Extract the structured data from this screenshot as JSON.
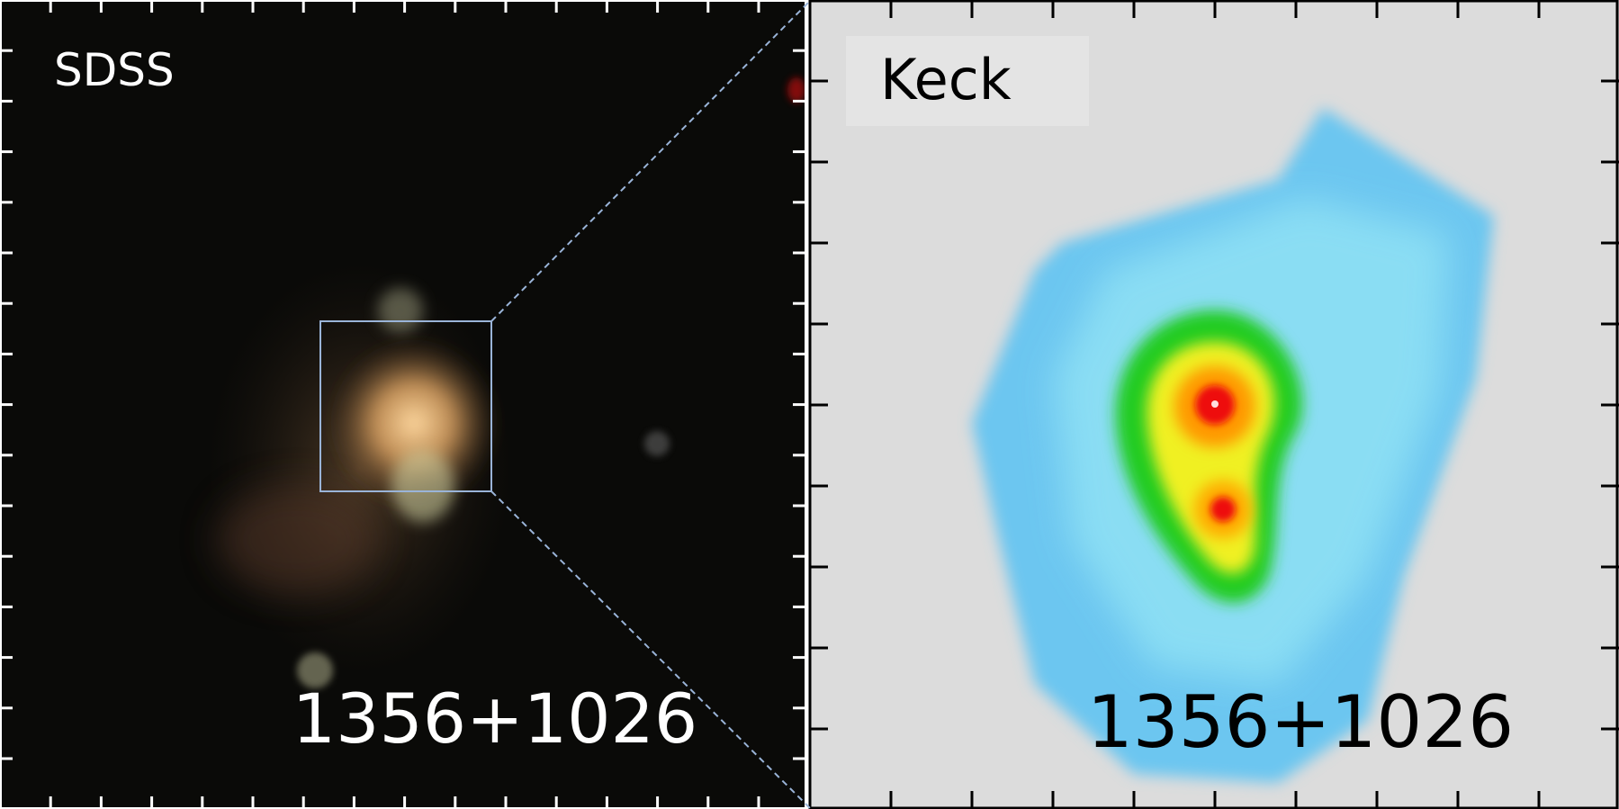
{
  "panels": [
    {
      "label": "SDSS",
      "object": "1356+1026"
    },
    {
      "label": "Keck",
      "object": "1356+1026"
    }
  ]
}
